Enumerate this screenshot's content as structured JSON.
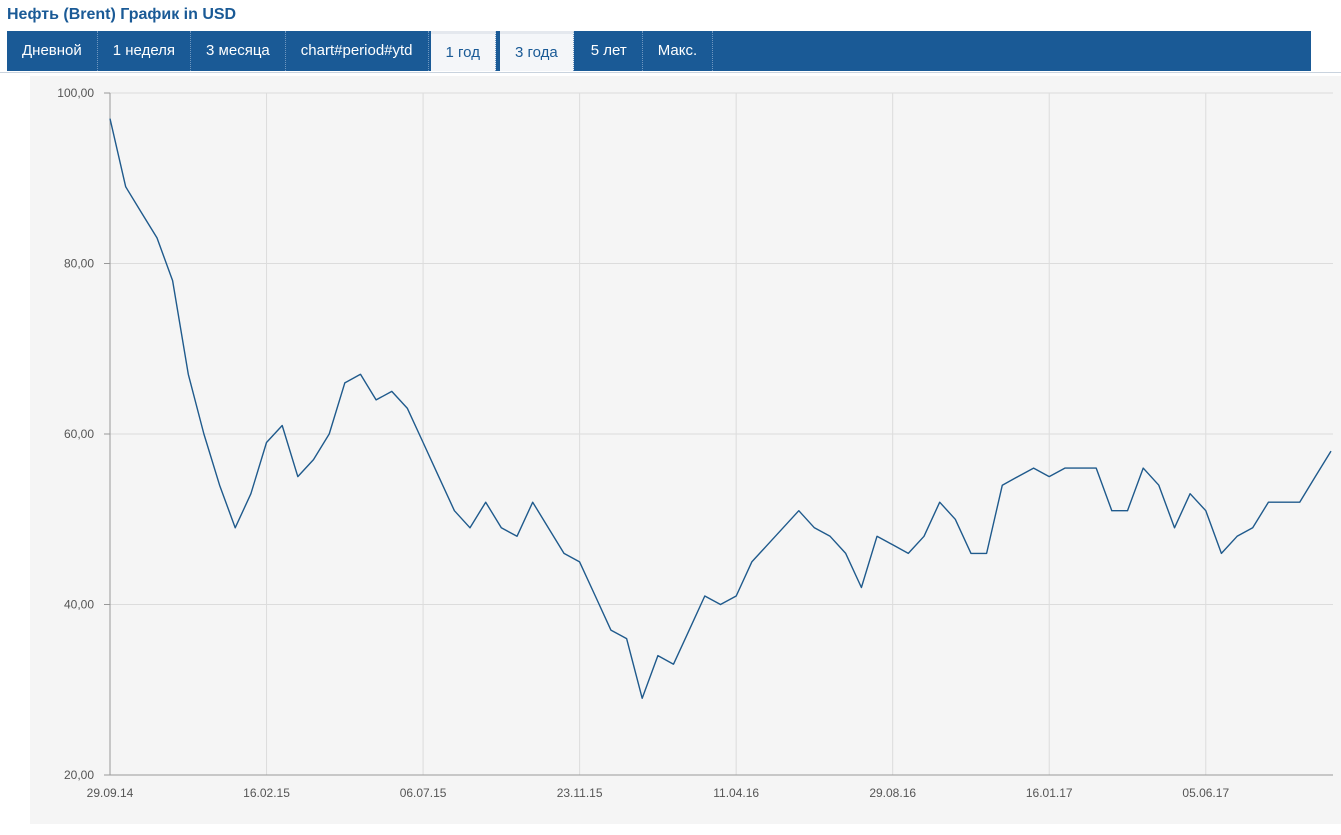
{
  "header": {
    "title": "Нефть (Brent) График in USD"
  },
  "tabs": [
    {
      "label": "Дневной",
      "selected": false
    },
    {
      "label": "1 неделя",
      "selected": false
    },
    {
      "label": "3 месяца",
      "selected": false
    },
    {
      "label": "chart#period#ytd",
      "selected": false
    },
    {
      "label": "1 год",
      "selected": true
    },
    {
      "label": "3 года",
      "selected": true
    },
    {
      "label": "5 лет",
      "selected": false
    },
    {
      "label": "Макс.",
      "selected": false
    }
  ],
  "chart_data": {
    "type": "line",
    "color": "#1f5a8c",
    "grid": true,
    "x": [
      "29.09.14",
      "13.10.14",
      "27.10.14",
      "10.11.14",
      "24.11.14",
      "08.12.14",
      "22.12.14",
      "05.01.15",
      "19.01.15",
      "02.02.15",
      "16.02.15",
      "02.03.15",
      "16.03.15",
      "30.03.15",
      "13.04.15",
      "27.04.15",
      "11.05.15",
      "25.05.15",
      "08.06.15",
      "22.06.15",
      "06.07.15",
      "20.07.15",
      "03.08.15",
      "17.08.15",
      "31.08.15",
      "14.09.15",
      "28.09.15",
      "12.10.15",
      "26.10.15",
      "09.11.15",
      "23.11.15",
      "07.12.15",
      "21.12.15",
      "04.01.16",
      "18.01.16",
      "01.02.16",
      "15.02.16",
      "29.02.16",
      "14.03.16",
      "28.03.16",
      "11.04.16",
      "25.04.16",
      "09.05.16",
      "23.05.16",
      "06.06.16",
      "20.06.16",
      "04.07.16",
      "18.07.16",
      "01.08.16",
      "15.08.16",
      "29.08.16",
      "12.09.16",
      "26.09.16",
      "10.10.16",
      "24.10.16",
      "07.11.16",
      "21.11.16",
      "05.12.16",
      "19.12.16",
      "02.01.17",
      "16.01.17",
      "30.01.17",
      "13.02.17",
      "27.02.17",
      "13.03.17",
      "27.03.17",
      "10.04.17",
      "24.04.17",
      "08.05.17",
      "22.05.17",
      "05.06.17",
      "19.06.17",
      "03.07.17",
      "17.07.17",
      "31.07.17",
      "14.08.17",
      "28.08.17",
      "11.09.17",
      "25.09.17"
    ],
    "values": [
      97,
      89,
      86,
      83,
      78,
      67,
      60,
      54,
      49,
      53,
      59,
      61,
      55,
      57,
      60,
      66,
      67,
      64,
      65,
      63,
      59,
      55,
      51,
      49,
      52,
      49,
      48,
      52,
      49,
      46,
      45,
      41,
      37,
      36,
      29,
      34,
      33,
      37,
      41,
      40,
      41,
      45,
      47,
      49,
      51,
      49,
      48,
      46,
      42,
      48,
      47,
      46,
      48,
      52,
      50,
      46,
      46,
      54,
      55,
      56,
      55,
      56,
      56,
      56,
      51,
      51,
      56,
      54,
      49,
      53,
      51,
      46,
      48,
      49,
      52,
      52,
      52,
      55,
      58
    ],
    "xlim": [
      "29.09.14",
      "25.09.17"
    ],
    "xticks": [
      "29.09.14",
      "16.02.15",
      "06.07.15",
      "23.11.15",
      "11.04.16",
      "29.08.16",
      "16.01.17",
      "05.06.17"
    ],
    "ylim": [
      20,
      100
    ],
    "yticks": [
      {
        "value": 20,
        "label": "20,00"
      },
      {
        "value": 40,
        "label": "40,00"
      },
      {
        "value": 60,
        "label": "60,00"
      },
      {
        "value": 80,
        "label": "80,00"
      },
      {
        "value": 100,
        "label": "100,00"
      }
    ]
  }
}
